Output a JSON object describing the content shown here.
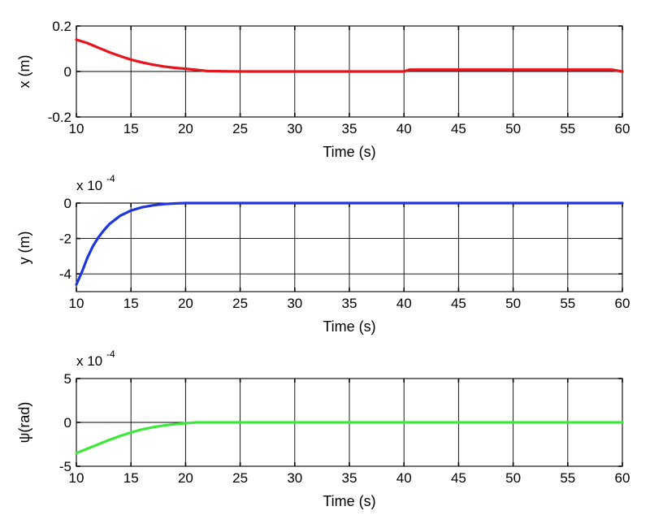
{
  "chart_data": [
    {
      "type": "line",
      "xlabel": "Time (s)",
      "ylabel": "x (m)",
      "multiplier": "",
      "multiplier_exp": "",
      "xlim": [
        10,
        60
      ],
      "ylim": [
        -0.2,
        0.2
      ],
      "xticks": [
        10,
        15,
        20,
        25,
        30,
        35,
        40,
        45,
        50,
        55,
        60
      ],
      "xtick_labels": [
        "10",
        "15",
        "20",
        "25",
        "30",
        "35",
        "40",
        "45",
        "50",
        "55",
        "60"
      ],
      "yticks": [
        -0.2,
        0,
        0.2
      ],
      "ytick_labels": [
        "-0.2",
        "0",
        "0.2"
      ],
      "grid": true,
      "series": [
        {
          "color": "#e8141c",
          "x": [
            10,
            11,
            12,
            13,
            14,
            15,
            16,
            17,
            18,
            19,
            20,
            22,
            25,
            30,
            35,
            40,
            40.5,
            45,
            50,
            55,
            59,
            60
          ],
          "y": [
            0.14,
            0.125,
            0.105,
            0.085,
            0.068,
            0.052,
            0.04,
            0.03,
            0.022,
            0.016,
            0.012,
            0.002,
            0.0,
            0.0,
            0.0,
            0.0,
            0.008,
            0.008,
            0.008,
            0.008,
            0.008,
            0.0
          ]
        }
      ]
    },
    {
      "type": "line",
      "xlabel": "Time (s)",
      "ylabel": "y (m)",
      "multiplier": "x 10",
      "multiplier_exp": "-4",
      "xlim": [
        10,
        60
      ],
      "ylim": [
        -5,
        0
      ],
      "xticks": [
        10,
        15,
        20,
        25,
        30,
        35,
        40,
        45,
        50,
        55,
        60
      ],
      "xtick_labels": [
        "10",
        "15",
        "20",
        "25",
        "30",
        "35",
        "40",
        "45",
        "50",
        "55",
        "60"
      ],
      "yticks": [
        -4,
        -2,
        0
      ],
      "ytick_labels": [
        "-4",
        "-2",
        "0"
      ],
      "grid": true,
      "series": [
        {
          "color": "#1f35e0",
          "x": [
            10,
            10.5,
            11,
            11.5,
            12,
            12.5,
            13,
            14,
            15,
            16,
            17,
            18,
            19,
            20,
            25,
            30,
            35,
            40,
            45,
            50,
            55,
            60
          ],
          "y": [
            -4.6,
            -3.9,
            -3.1,
            -2.45,
            -1.95,
            -1.55,
            -1.2,
            -0.72,
            -0.42,
            -0.24,
            -0.13,
            -0.06,
            -0.02,
            0.0,
            0.0,
            0.0,
            0.0,
            0.0,
            0.0,
            0.0,
            0.0,
            0.0
          ]
        }
      ]
    },
    {
      "type": "line",
      "xlabel": "Time (s)",
      "ylabel": "ψ(rad)",
      "multiplier": "x 10",
      "multiplier_exp": "-4",
      "xlim": [
        10,
        60
      ],
      "ylim": [
        -5,
        5
      ],
      "xticks": [
        10,
        15,
        20,
        25,
        30,
        35,
        40,
        45,
        50,
        55,
        60
      ],
      "xtick_labels": [
        "10",
        "15",
        "20",
        "25",
        "30",
        "35",
        "40",
        "45",
        "50",
        "55",
        "60"
      ],
      "yticks": [
        -5,
        0,
        5
      ],
      "ytick_labels": [
        "-5",
        "0",
        "5"
      ],
      "grid": true,
      "series": [
        {
          "color": "#3ee83a",
          "x": [
            10,
            11,
            12,
            13,
            14,
            15,
            16,
            17,
            18,
            19,
            20,
            21,
            25,
            30,
            35,
            40,
            45,
            50,
            55,
            60
          ],
          "y": [
            -3.5,
            -3.0,
            -2.5,
            -2.0,
            -1.55,
            -1.15,
            -0.8,
            -0.55,
            -0.35,
            -0.2,
            -0.1,
            0.0,
            0.0,
            0.0,
            0.0,
            0.0,
            0.0,
            0.0,
            0.0,
            0.0
          ]
        }
      ]
    }
  ]
}
